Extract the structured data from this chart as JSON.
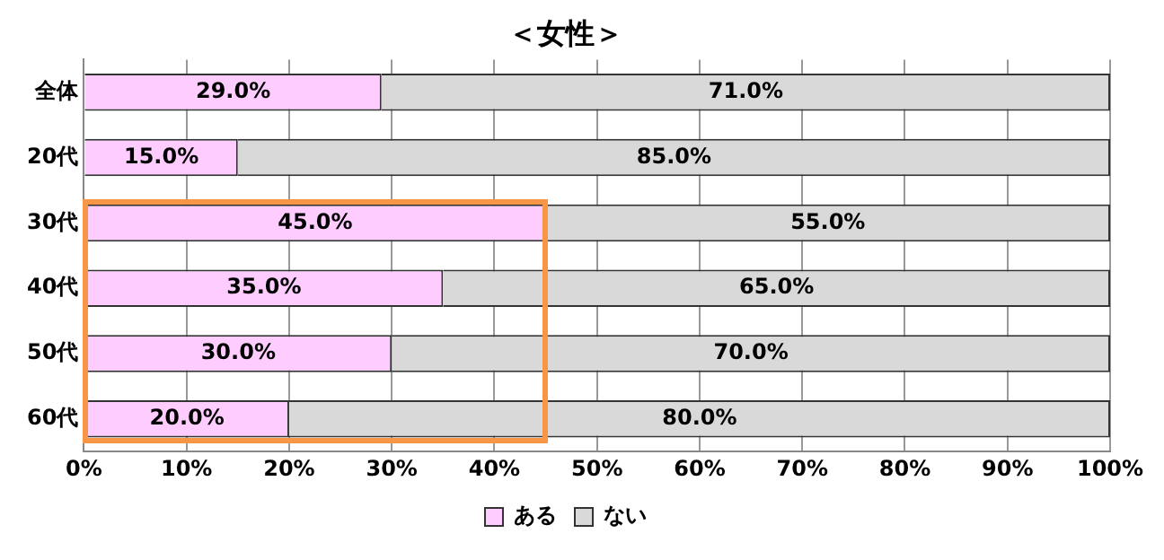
{
  "chart_data": {
    "type": "bar",
    "title": "＜女性＞",
    "orientation": "horizontal",
    "stacked": true,
    "categories": [
      "全体",
      "20代",
      "30代",
      "40代",
      "50代",
      "60代"
    ],
    "series": [
      {
        "name": "ある",
        "color": "#ffccff",
        "values": [
          29,
          15,
          45,
          35,
          30,
          20
        ],
        "value_labels": [
          "29.0%",
          "15.0%",
          "45.0%",
          "35.0%",
          "30.0%",
          "20.0%"
        ]
      },
      {
        "name": "ない",
        "color": "#d9d9d9",
        "values": [
          71,
          85,
          55,
          65,
          70,
          80
        ],
        "value_labels": [
          "71.0%",
          "85.0%",
          "55.0%",
          "65.0%",
          "70.0%",
          "80.0%"
        ]
      }
    ],
    "xlim": [
      0,
      100
    ],
    "xticks": [
      {
        "value": 0,
        "label": "0%"
      },
      {
        "value": 10,
        "label": "10%"
      },
      {
        "value": 20,
        "label": "20%"
      },
      {
        "value": 30,
        "label": "30%"
      },
      {
        "value": 40,
        "label": "40%"
      },
      {
        "value": 50,
        "label": "50%"
      },
      {
        "value": 60,
        "label": "60%"
      },
      {
        "value": 70,
        "label": "70%"
      },
      {
        "value": 80,
        "label": "80%"
      },
      {
        "value": 90,
        "label": "90%"
      },
      {
        "value": 100,
        "label": "100%"
      }
    ],
    "grid": "x",
    "legend": "bottom"
  }
}
